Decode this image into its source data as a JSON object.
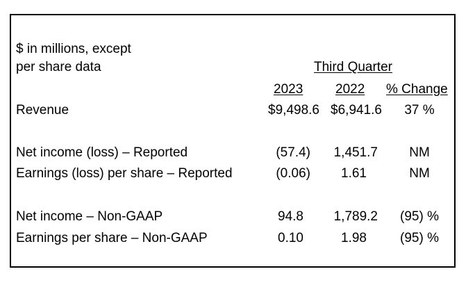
{
  "header": {
    "units_line1": "$ in millions, except",
    "units_line2": "per share data",
    "period": "Third Quarter",
    "col_2023": "2023",
    "col_2022": "2022",
    "col_change": "% Change"
  },
  "rows": [
    {
      "label": "Revenue",
      "v2023": "$9,498.6",
      "v2022": "$6,941.6",
      "change": "37 %"
    },
    {
      "label": "Net income (loss) – Reported",
      "v2023": "(57.4)",
      "v2022": "1,451.7",
      "change": "NM"
    },
    {
      "label": "Earnings (loss) per share – Reported",
      "v2023": "(0.06)",
      "v2022": "1.61",
      "change": "NM"
    },
    {
      "label": "Net income – Non-GAAP",
      "v2023": "94.8",
      "v2022": "1,789.2",
      "change": "(95) %"
    },
    {
      "label": "Earnings per share – Non-GAAP",
      "v2023": "0.10",
      "v2022": "1.98",
      "change": "(95) %"
    }
  ]
}
